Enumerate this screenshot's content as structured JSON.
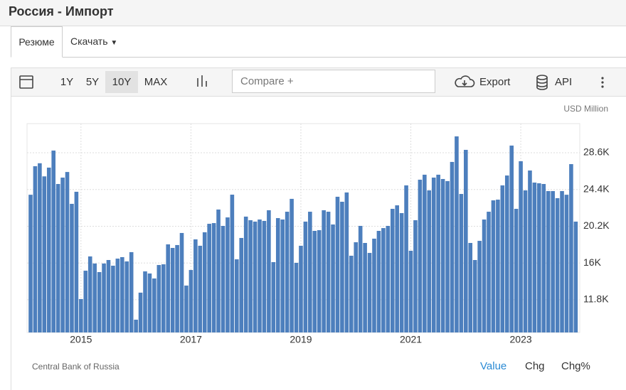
{
  "header": {
    "title": "Россия - Импорт"
  },
  "tabs": [
    "Резюме",
    "Скачать"
  ],
  "toolbar": {
    "ranges": [
      "1Y",
      "5Y",
      "10Y",
      "MAX"
    ],
    "compare_placeholder": "Compare +",
    "export": "Export",
    "api": "API"
  },
  "chart_data": {
    "type": "bar",
    "unit": "USD Million",
    "color": "#4d7fbd",
    "grid": true,
    "categories": [
      null,
      null,
      null,
      null,
      null,
      null,
      null,
      null,
      null,
      null,
      null,
      "2015",
      null,
      null,
      null,
      null,
      null,
      null,
      null,
      null,
      null,
      null,
      null,
      null,
      null,
      null,
      null,
      null,
      null,
      null,
      null,
      null,
      null,
      null,
      null,
      "2017",
      null,
      null,
      null,
      null,
      null,
      null,
      null,
      null,
      null,
      null,
      null,
      null,
      null,
      null,
      null,
      null,
      null,
      null,
      null,
      null,
      null,
      null,
      null,
      "2019",
      null,
      null,
      null,
      null,
      null,
      null,
      null,
      null,
      null,
      null,
      null,
      null,
      null,
      null,
      null,
      null,
      null,
      null,
      null,
      null,
      null,
      null,
      null,
      "2021",
      null,
      null,
      null,
      null,
      null,
      null,
      null,
      null,
      null,
      null,
      null,
      null,
      null,
      null,
      null,
      null,
      null,
      null,
      null,
      null,
      null,
      null,
      null,
      "2023",
      null,
      null,
      null,
      null,
      null,
      null,
      null,
      null,
      null,
      null,
      null,
      null
    ],
    "values": [
      23800,
      27060,
      27400,
      25900,
      26900,
      28850,
      25030,
      25760,
      26400,
      22760,
      24140,
      11880,
      15120,
      16750,
      15940,
      14960,
      15940,
      16340,
      15690,
      16500,
      16670,
      16180,
      17240,
      9520,
      12610,
      15040,
      14800,
      14230,
      15770,
      15850,
      18130,
      17720,
      18050,
      19430,
      13420,
      15200,
      18700,
      17970,
      19510,
      20480,
      20560,
      22110,
      20240,
      21210,
      23810,
      16420,
      18860,
      21300,
      20890,
      20730,
      20970,
      20810,
      22030,
      16100,
      21130,
      20970,
      21860,
      23330,
      16020,
      17970,
      20730,
      21860,
      19670,
      19750,
      22030,
      21860,
      20400,
      23570,
      23000,
      24060,
      16830,
      18370,
      20240,
      18290,
      17150,
      18780,
      19670,
      19990,
      20240,
      22190,
      22590,
      21700,
      24870,
      17400,
      20890,
      25520,
      26090,
      24300,
      25760,
      26090,
      25600,
      25360,
      27550,
      30470,
      23890,
      28930,
      18290,
      16340,
      18530,
      20970,
      21860,
      23160,
      23240,
      24870,
      26000,
      29420,
      22190,
      27630,
      24300,
      26570,
      25190,
      25110,
      25030,
      24220,
      24220,
      23410,
      24220,
      23800,
      27300,
      20730
    ],
    "ylim": [
      8060,
      31930
    ],
    "yticks": [
      {
        "value": 11800,
        "label": "11.8K"
      },
      {
        "value": 16000,
        "label": "16K"
      },
      {
        "value": 20200,
        "label": "20.2K"
      },
      {
        "value": 24400,
        "label": "24.4K"
      },
      {
        "value": 28600,
        "label": "28.6K"
      }
    ]
  },
  "footer": {
    "source": "Central Bank of Russia",
    "views": [
      "Value",
      "Chg",
      "Chg%"
    ]
  }
}
